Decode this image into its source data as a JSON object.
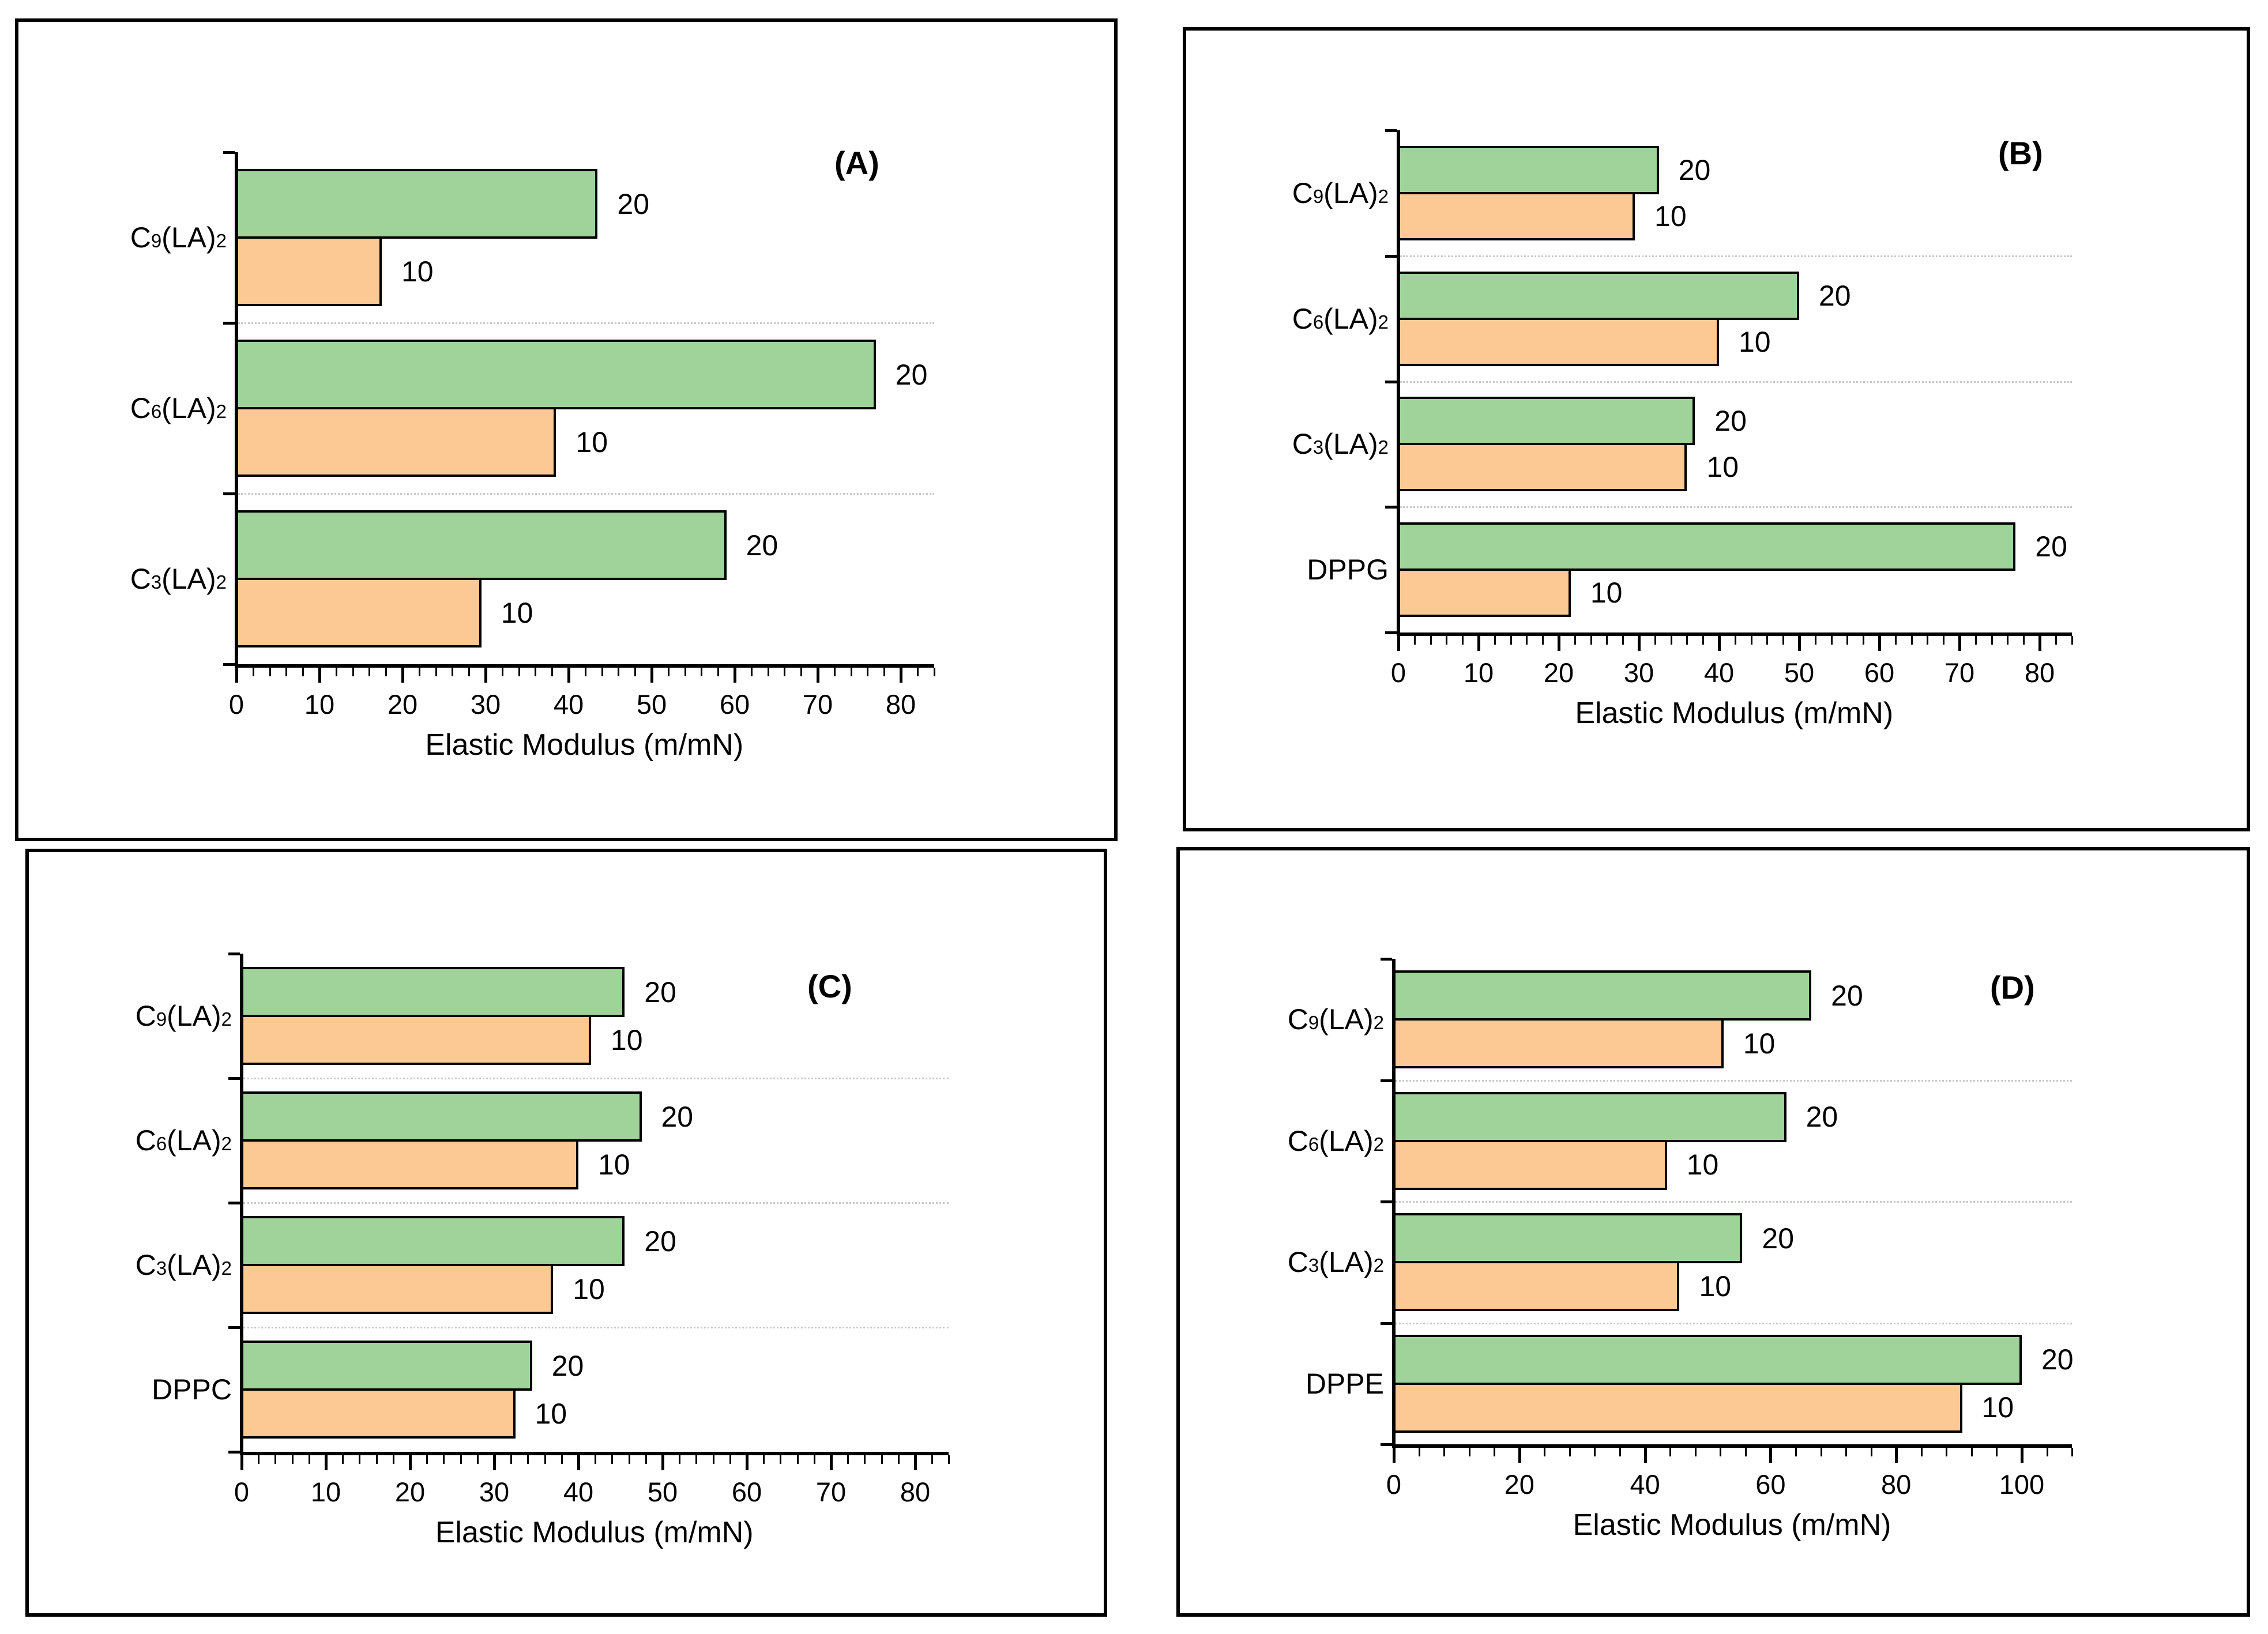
{
  "colors": {
    "bar_20_fill": "#a0d39a",
    "bar_10_fill": "#fcc894",
    "bar_border": "#000000",
    "axis": "#000000",
    "group_separator": "#c8c8c8",
    "background": "#ffffff"
  },
  "chart_data": [
    {
      "panel": "A",
      "type": "bar",
      "orientation": "horizontal",
      "title": "(A)",
      "xlabel": "Elastic Modulus (m/mN)",
      "xlim": [
        0,
        84
      ],
      "x_major_step": 10,
      "x_minor_step": 2,
      "x_tick_labels": [
        "0",
        "10",
        "20",
        "30",
        "40",
        "50",
        "60",
        "70",
        "80"
      ],
      "grid": "dotted horizontal separators between category groups",
      "legend_position": "values labeled at bar ends",
      "categories": [
        "C9(LA)2",
        "C6(LA)2",
        "C3(LA)2"
      ],
      "categories_rich": [
        [
          {
            "t": "C"
          },
          {
            "t": "9",
            "sub": true
          },
          {
            "t": "(LA)"
          },
          {
            "t": "2",
            "sub": true
          }
        ],
        [
          {
            "t": "C"
          },
          {
            "t": "6",
            "sub": true
          },
          {
            "t": "(LA)"
          },
          {
            "t": "2",
            "sub": true
          }
        ],
        [
          {
            "t": "C"
          },
          {
            "t": "3",
            "sub": true
          },
          {
            "t": "(LA)"
          },
          {
            "t": "2",
            "sub": true
          }
        ]
      ],
      "series": [
        {
          "name": "20",
          "color": "#a0d39a",
          "values": [
            43.5,
            77,
            59
          ]
        },
        {
          "name": "10",
          "color": "#fcc894",
          "values": [
            17.5,
            38.5,
            29.5
          ]
        }
      ]
    },
    {
      "panel": "B",
      "type": "bar",
      "orientation": "horizontal",
      "title": "(B)",
      "xlabel": "Elastic Modulus (m/mN)",
      "xlim": [
        0,
        84
      ],
      "x_major_step": 10,
      "x_minor_step": 2,
      "x_tick_labels": [
        "0",
        "10",
        "20",
        "30",
        "40",
        "50",
        "60",
        "70",
        "80"
      ],
      "grid": "dotted horizontal separators between category groups",
      "legend_position": "values labeled at bar ends",
      "categories": [
        "C9(LA)2",
        "C6(LA)2",
        "C3(LA)2",
        "DPPG"
      ],
      "categories_rich": [
        [
          {
            "t": "C"
          },
          {
            "t": "9",
            "sub": true
          },
          {
            "t": "(LA)"
          },
          {
            "t": "2",
            "sub": true
          }
        ],
        [
          {
            "t": "C"
          },
          {
            "t": "6",
            "sub": true
          },
          {
            "t": "(LA)"
          },
          {
            "t": "2",
            "sub": true
          }
        ],
        [
          {
            "t": "C"
          },
          {
            "t": "3",
            "sub": true
          },
          {
            "t": "(LA)"
          },
          {
            "t": "2",
            "sub": true
          }
        ],
        [
          {
            "t": "DPPG"
          }
        ]
      ],
      "series": [
        {
          "name": "20",
          "color": "#a0d39a",
          "values": [
            32.5,
            50,
            37,
            77
          ]
        },
        {
          "name": "10",
          "color": "#fcc894",
          "values": [
            29.5,
            40,
            36,
            21.5
          ]
        }
      ]
    },
    {
      "panel": "C",
      "type": "bar",
      "orientation": "horizontal",
      "title": "(C)",
      "xlabel": "Elastic Modulus (m/mN)",
      "xlim": [
        0,
        84
      ],
      "x_major_step": 10,
      "x_minor_step": 2,
      "x_tick_labels": [
        "0",
        "10",
        "20",
        "30",
        "40",
        "50",
        "60",
        "70",
        "80"
      ],
      "grid": "dotted horizontal separators between category groups",
      "legend_position": "values labeled at bar ends",
      "categories": [
        "C9(LA)2",
        "C6(LA)2",
        "C3(LA)2",
        "DPPC"
      ],
      "categories_rich": [
        [
          {
            "t": "C"
          },
          {
            "t": "9",
            "sub": true
          },
          {
            "t": "(LA)"
          },
          {
            "t": "2",
            "sub": true
          }
        ],
        [
          {
            "t": "C"
          },
          {
            "t": "6",
            "sub": true
          },
          {
            "t": "(LA)"
          },
          {
            "t": "2",
            "sub": true
          }
        ],
        [
          {
            "t": "C"
          },
          {
            "t": "3",
            "sub": true
          },
          {
            "t": "(LA)"
          },
          {
            "t": "2",
            "sub": true
          }
        ],
        [
          {
            "t": "DPPC"
          }
        ]
      ],
      "series": [
        {
          "name": "20",
          "color": "#a0d39a",
          "values": [
            45.5,
            47.5,
            45.5,
            34.5
          ]
        },
        {
          "name": "10",
          "color": "#fcc894",
          "values": [
            41.5,
            40,
            37,
            32.5
          ]
        }
      ]
    },
    {
      "panel": "D",
      "type": "bar",
      "orientation": "horizontal",
      "title": "(D)",
      "xlabel": "Elastic Modulus (m/mN)",
      "xlim": [
        0,
        108
      ],
      "x_major_step": 20,
      "x_minor_step": 4,
      "x_tick_labels": [
        "0",
        "20",
        "40",
        "60",
        "80",
        "100"
      ],
      "grid": "dotted horizontal separators between category groups",
      "legend_position": "values labeled at bar ends",
      "categories": [
        "C9(LA)2",
        "C6(LA)2",
        "C3(LA)2",
        "DPPE"
      ],
      "categories_rich": [
        [
          {
            "t": "C"
          },
          {
            "t": "9",
            "sub": true
          },
          {
            "t": "(LA)"
          },
          {
            "t": "2",
            "sub": true
          }
        ],
        [
          {
            "t": "C"
          },
          {
            "t": "6",
            "sub": true
          },
          {
            "t": "(LA)"
          },
          {
            "t": "2",
            "sub": true
          }
        ],
        [
          {
            "t": "C"
          },
          {
            "t": "3",
            "sub": true
          },
          {
            "t": "(LA)"
          },
          {
            "t": "2",
            "sub": true
          }
        ],
        [
          {
            "t": "DPPE"
          }
        ]
      ],
      "series": [
        {
          "name": "20",
          "color": "#a0d39a",
          "values": [
            66.5,
            62.5,
            55.5,
            100
          ]
        },
        {
          "name": "10",
          "color": "#fcc894",
          "values": [
            52.5,
            43.5,
            45.5,
            90.5
          ]
        }
      ]
    }
  ]
}
